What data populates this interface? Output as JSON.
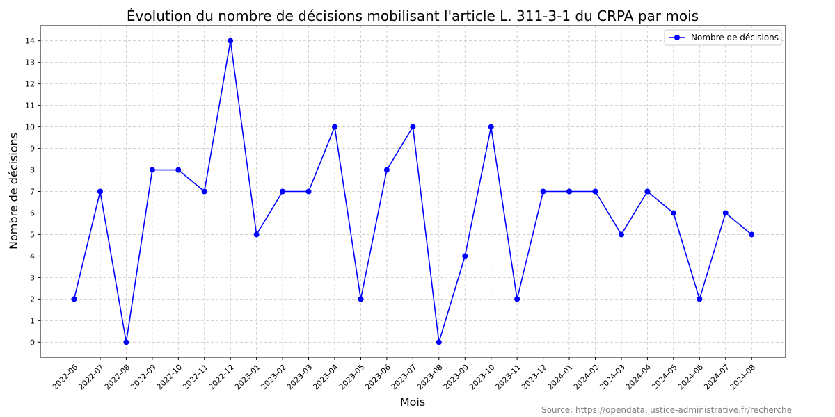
{
  "chart_data": {
    "type": "line",
    "title": "Évolution du nombre de décisions mobilisant l'article L. 311-3-1 du CRPA par mois",
    "xlabel": "Mois",
    "ylabel": "Nombre de décisions",
    "categories": [
      "2022-06",
      "2022-07",
      "2022-08",
      "2022-09",
      "2022-10",
      "2022-11",
      "2022-12",
      "2023-01",
      "2023-02",
      "2023-03",
      "2023-04",
      "2023-05",
      "2023-06",
      "2023-07",
      "2023-08",
      "2023-09",
      "2023-10",
      "2023-11",
      "2023-12",
      "2024-01",
      "2024-02",
      "2024-03",
      "2024-04",
      "2024-05",
      "2024-06",
      "2024-07",
      "2024-08"
    ],
    "series": [
      {
        "name": "Nombre de décisions",
        "color": "#0000ff",
        "values": [
          2,
          7,
          0,
          8,
          8,
          7,
          14,
          5,
          7,
          7,
          10,
          2,
          8,
          10,
          0,
          4,
          10,
          2,
          7,
          7,
          7,
          5,
          7,
          6,
          2,
          6,
          5
        ]
      }
    ],
    "ylim": [
      -0.7,
      14.7
    ],
    "yticks": [
      0,
      1,
      2,
      3,
      4,
      5,
      6,
      7,
      8,
      9,
      10,
      11,
      12,
      13,
      14
    ],
    "grid": true,
    "legend_position": "top-right",
    "source": "Source: https://opendata.justice-administrative.fr/recherche"
  }
}
